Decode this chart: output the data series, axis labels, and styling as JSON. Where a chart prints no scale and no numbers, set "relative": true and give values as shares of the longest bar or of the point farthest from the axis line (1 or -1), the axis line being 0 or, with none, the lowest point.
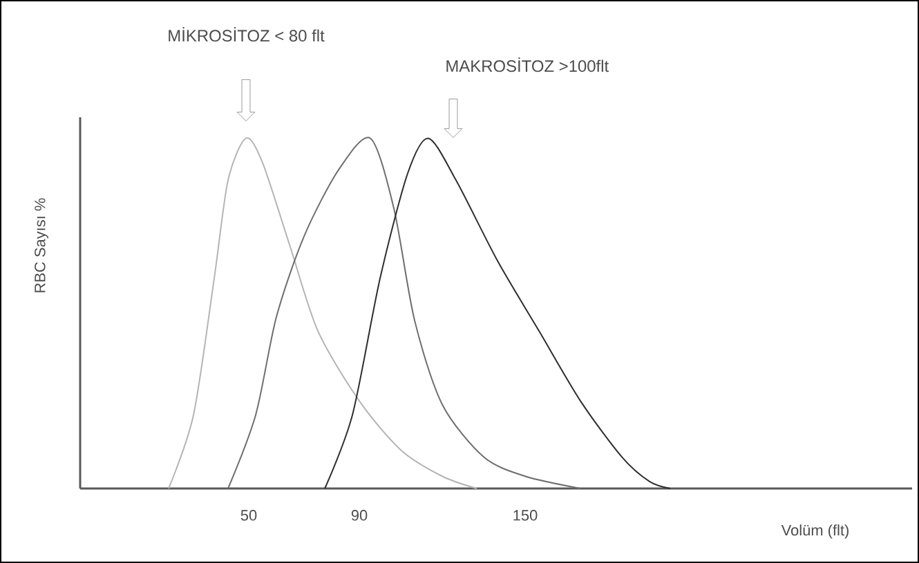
{
  "chart_data": {
    "type": "line",
    "relative": true,
    "xlabel": "Volüm (flt)",
    "ylabel": "RBC Sayısı %",
    "xlim": [
      -11,
      290
    ],
    "xticks": [
      50,
      90,
      150
    ],
    "tick_labels": "x",
    "grid": false,
    "marker": "none",
    "line_style": "solid",
    "series": [
      {
        "color": "#b4b4b4",
        "x": [
          21,
          30,
          37.5,
          42.5,
          49,
          55,
          65,
          75,
          90,
          105,
          120,
          132.5
        ],
        "values": [
          0,
          0.21,
          0.6,
          0.88,
          1,
          0.93,
          0.69,
          0.45,
          0.25,
          0.11,
          0.035,
          0
        ]
      },
      {
        "color": "#6e6e6e",
        "x": [
          42.5,
          52.5,
          60,
          70,
          82.5,
          94,
          102.5,
          110,
          120,
          135,
          150,
          170
        ],
        "values": [
          0,
          0.21,
          0.49,
          0.72,
          0.91,
          1,
          0.8,
          0.48,
          0.24,
          0.09,
          0.035,
          0
        ]
      },
      {
        "color": "#2e2e2e",
        "x": [
          77.5,
          87.5,
          97.5,
          107.5,
          115,
          125,
          140,
          155,
          170,
          185,
          195,
          202.5
        ],
        "values": [
          0,
          0.21,
          0.6,
          0.9,
          1,
          0.88,
          0.65,
          0.45,
          0.25,
          0.09,
          0.02,
          0
        ]
      }
    ],
    "annotations": [
      "MİKROSİTOZ < 80 flt",
      "MAKROSİTOZ >100flt"
    ]
  }
}
